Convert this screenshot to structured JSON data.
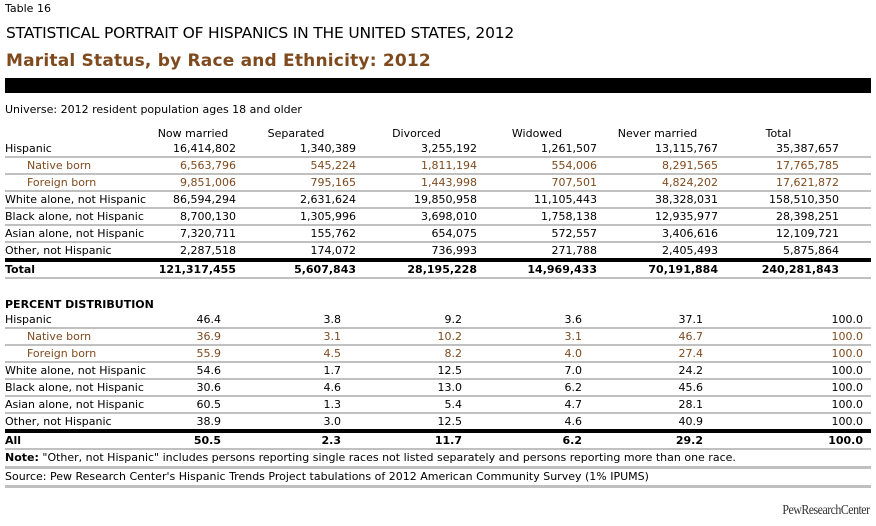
{
  "table_number": "Table 16",
  "supertitle": "STATISTICAL PORTRAIT OF HISPANICS IN THE UNITED STATES, 2012",
  "title": "Marital Status, by Race and Ethnicity: 2012",
  "universe": "Universe: 2012 resident population ages 18 and older",
  "columns": [
    "Now married",
    "Separated",
    "Divorced",
    "Widowed",
    "Never married",
    "Total"
  ],
  "counts": {
    "rows": [
      {
        "label": "Hispanic",
        "sub": false,
        "values": [
          "16,414,802",
          "1,340,389",
          "3,255,192",
          "1,261,507",
          "13,115,767",
          "35,387,657"
        ]
      },
      {
        "label": "Native born",
        "sub": true,
        "values": [
          "6,563,796",
          "545,224",
          "1,811,194",
          "554,006",
          "8,291,565",
          "17,765,785"
        ]
      },
      {
        "label": "Foreign born",
        "sub": true,
        "values": [
          "9,851,006",
          "795,165",
          "1,443,998",
          "707,501",
          "4,824,202",
          "17,621,872"
        ]
      },
      {
        "label": "White alone, not Hispanic",
        "sub": false,
        "values": [
          "86,594,294",
          "2,631,624",
          "19,850,958",
          "11,105,443",
          "38,328,031",
          "158,510,350"
        ]
      },
      {
        "label": "Black alone, not Hispanic",
        "sub": false,
        "values": [
          "8,700,130",
          "1,305,996",
          "3,698,010",
          "1,758,138",
          "12,935,977",
          "28,398,251"
        ]
      },
      {
        "label": "Asian alone, not Hispanic",
        "sub": false,
        "values": [
          "7,320,711",
          "155,762",
          "654,075",
          "572,557",
          "3,406,616",
          "12,109,721"
        ]
      },
      {
        "label": "Other, not Hispanic",
        "sub": false,
        "values": [
          "2,287,518",
          "174,072",
          "736,993",
          "271,788",
          "2,405,493",
          "5,875,864"
        ]
      }
    ],
    "total": {
      "label": "Total",
      "values": [
        "121,317,455",
        "5,607,843",
        "28,195,228",
        "14,969,433",
        "70,191,884",
        "240,281,843"
      ]
    }
  },
  "percent": {
    "heading": "PERCENT DISTRIBUTION",
    "rows": [
      {
        "label": "Hispanic",
        "sub": false,
        "values": [
          "46.4",
          "3.8",
          "9.2",
          "3.6",
          "37.1",
          "100.0"
        ]
      },
      {
        "label": "Native born",
        "sub": true,
        "values": [
          "36.9",
          "3.1",
          "10.2",
          "3.1",
          "46.7",
          "100.0"
        ]
      },
      {
        "label": "Foreign born",
        "sub": true,
        "values": [
          "55.9",
          "4.5",
          "8.2",
          "4.0",
          "27.4",
          "100.0"
        ]
      },
      {
        "label": "White alone, not Hispanic",
        "sub": false,
        "values": [
          "54.6",
          "1.7",
          "12.5",
          "7.0",
          "24.2",
          "100.0"
        ]
      },
      {
        "label": "Black alone, not Hispanic",
        "sub": false,
        "values": [
          "30.6",
          "4.6",
          "13.0",
          "6.2",
          "45.6",
          "100.0"
        ]
      },
      {
        "label": "Asian alone, not Hispanic",
        "sub": false,
        "values": [
          "60.5",
          "1.3",
          "5.4",
          "4.7",
          "28.1",
          "100.0"
        ]
      },
      {
        "label": "Other, not Hispanic",
        "sub": false,
        "values": [
          "38.9",
          "3.0",
          "12.5",
          "4.6",
          "40.9",
          "100.0"
        ]
      }
    ],
    "total": {
      "label": "All",
      "values": [
        "50.5",
        "2.3",
        "11.7",
        "6.2",
        "29.2",
        "100.0"
      ]
    }
  },
  "note_label": "Note:",
  "note": " \"Other, not Hispanic\" includes persons reporting single races not listed separately and persons reporting more than one race.",
  "source": "Source: Pew Research Center's Hispanic Trends Project tabulations of 2012 American Community Survey (1% IPUMS)",
  "logo": "PewResearchCenter",
  "colors": {
    "title": "#7f4a1e",
    "subrow": "#7f4a1e",
    "rule": "#c0c0c0"
  }
}
